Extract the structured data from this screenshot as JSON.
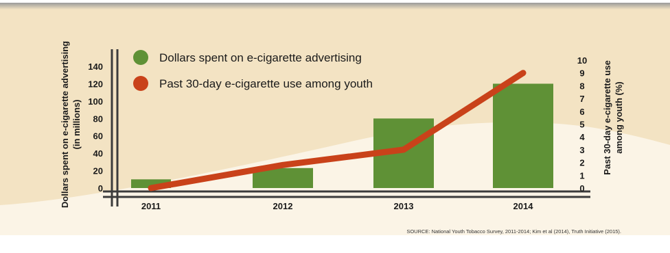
{
  "chart_data": {
    "type": "bar",
    "categories": [
      "2011",
      "2012",
      "2013",
      "2014"
    ],
    "series": [
      {
        "name": "Dollars spent on e-cigarette advertising",
        "type": "bar",
        "axis": "left",
        "values": [
          10,
          23,
          80,
          120
        ]
      },
      {
        "name": "Past 30-day e-cigarette use among youth",
        "type": "line",
        "axis": "right",
        "values": [
          0,
          1.8,
          3,
          9
        ]
      }
    ],
    "ylabel_left": "Dollars spent on e-cigarette advertising",
    "ylabel_left_sub": "(in millions)",
    "ylim_left": [
      0,
      140
    ],
    "yticks_left": [
      "0",
      "20",
      "40",
      "60",
      "80",
      "100",
      "120",
      "140"
    ],
    "ylabel_right": "Past 30-day e-cigarette use",
    "ylabel_right_sub": "among youth (%)",
    "ylim_right": [
      0,
      10
    ],
    "yticks_right": [
      "0",
      "1",
      "2",
      "3",
      "4",
      "5",
      "6",
      "7",
      "8",
      "9",
      "10"
    ],
    "legend_position": "top-left",
    "grid": false
  },
  "source": "SOURCE: National Youth Tobacco Survey, 2011-2014; Kim et al (2014), Truth Initiative (2015).",
  "colors": {
    "bar": "#5f9136",
    "line": "#c9421a",
    "background_tan": "#f3e3c3",
    "background_cream": "#fbf4e6",
    "axis": "#3c3c3c",
    "text": "#1a1a1a"
  }
}
